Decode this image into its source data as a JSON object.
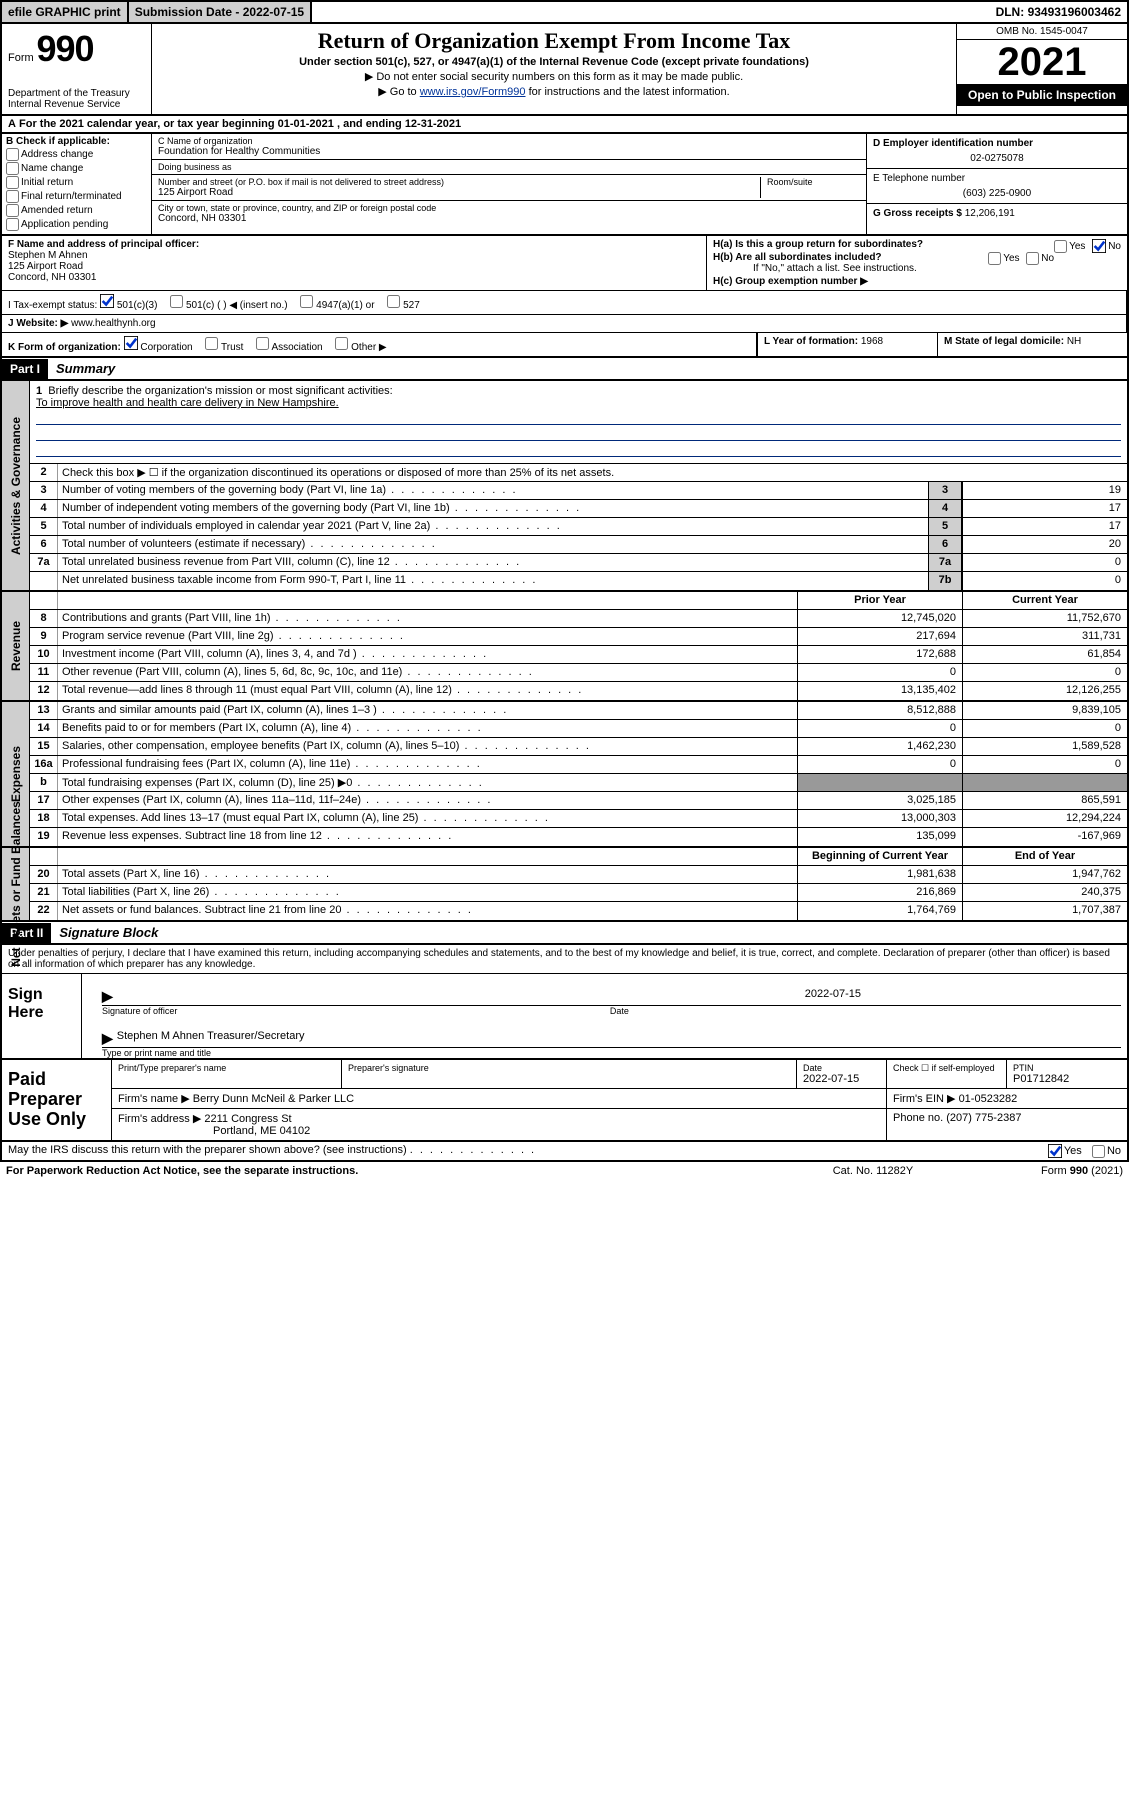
{
  "topbar": {
    "efile": "efile GRAPHIC print",
    "submission_label": "Submission Date - ",
    "submission_date": "2022-07-15",
    "dln_label": "DLN: ",
    "dln": "93493196003462"
  },
  "header": {
    "form_prefix": "Form",
    "form_number": "990",
    "dept": "Department of the Treasury",
    "irs": "Internal Revenue Service",
    "title": "Return of Organization Exempt From Income Tax",
    "subtitle": "Under section 501(c), 527, or 4947(a)(1) of the Internal Revenue Code (except private foundations)",
    "note1": "▶ Do not enter social security numbers on this form as it may be made public.",
    "note2_pre": "▶ Go to ",
    "note2_link": "www.irs.gov/Form990",
    "note2_post": " for instructions and the latest information.",
    "omb": "OMB No. 1545-0047",
    "year": "2021",
    "inspection": "Open to Public Inspection"
  },
  "period": {
    "a_label": "A",
    "text_pre": " For the 2021 calendar year, or tax year beginning ",
    "begin": "01-01-2021",
    "text_mid": " , and ending ",
    "end": "12-31-2021"
  },
  "boxB": {
    "label": "B Check if applicable:",
    "opts": [
      "Address change",
      "Name change",
      "Initial return",
      "Final return/terminated",
      "Amended return",
      "Application pending"
    ]
  },
  "boxC": {
    "name_label": "C Name of organization",
    "name": "Foundation for Healthy Communities",
    "dba_label": "Doing business as",
    "dba": "",
    "street_label": "Number and street (or P.O. box if mail is not delivered to street address)",
    "suite_label": "Room/suite",
    "street": "125 Airport Road",
    "city_label": "City or town, state or province, country, and ZIP or foreign postal code",
    "city": "Concord, NH  03301"
  },
  "boxD": {
    "label": "D Employer identification number",
    "value": "02-0275078"
  },
  "boxE": {
    "label": "E Telephone number",
    "value": "(603) 225-0900"
  },
  "boxG": {
    "label": "G Gross receipts $ ",
    "value": "12,206,191"
  },
  "boxF": {
    "label": "F  Name and address of principal officer:",
    "name": "Stephen M Ahnen",
    "street": "125 Airport Road",
    "city": "Concord, NH  03301"
  },
  "boxH": {
    "a_label": "H(a)  Is this a group return for subordinates?",
    "a_yes": "Yes",
    "a_no": "No",
    "b_label": "H(b)  Are all subordinates included?",
    "b_note": "If \"No,\" attach a list. See instructions.",
    "c_label": "H(c)  Group exemption number ▶"
  },
  "boxI": {
    "label": "I     Tax-exempt status:",
    "opt1": "501(c)(3)",
    "opt2": "501(c) (   ) ◀ (insert no.)",
    "opt3": "4947(a)(1) or",
    "opt4": "527"
  },
  "boxJ": {
    "label": "J    Website: ▶ ",
    "value": "www.healthynh.org"
  },
  "boxK": {
    "label": "K Form of organization:",
    "opts": [
      "Corporation",
      "Trust",
      "Association",
      "Other ▶"
    ]
  },
  "boxL": {
    "label": "L Year of formation: ",
    "value": "1968"
  },
  "boxM": {
    "label": "M State of legal domicile: ",
    "value": "NH"
  },
  "partI": {
    "hdr": "Part I",
    "title": "Summary",
    "line1_label": "Briefly describe the organization's mission or most significant activities:",
    "line1_text": "To improve health and health care delivery in New Hampshire.",
    "line2": "Check this box ▶ ☐  if the organization discontinued its operations or disposed of more than 25% of its net assets.",
    "vtab_gov": "Activities & Governance",
    "vtab_rev": "Revenue",
    "vtab_exp": "Expenses",
    "vtab_net": "Net Assets or Fund Balances",
    "col_prior": "Prior Year",
    "col_curr": "Current Year",
    "col_beg": "Beginning of Current Year",
    "col_end": "End of Year",
    "rows_gov": [
      {
        "n": "3",
        "desc": "Number of voting members of the governing body (Part VI, line 1a)",
        "box": "3",
        "val": "19"
      },
      {
        "n": "4",
        "desc": "Number of independent voting members of the governing body (Part VI, line 1b)",
        "box": "4",
        "val": "17"
      },
      {
        "n": "5",
        "desc": "Total number of individuals employed in calendar year 2021 (Part V, line 2a)",
        "box": "5",
        "val": "17"
      },
      {
        "n": "6",
        "desc": "Total number of volunteers (estimate if necessary)",
        "box": "6",
        "val": "20"
      },
      {
        "n": "7a",
        "desc": "Total unrelated business revenue from Part VIII, column (C), line 12",
        "box": "7a",
        "val": "0"
      },
      {
        "n": "",
        "desc": "Net unrelated business taxable income from Form 990-T, Part I, line 11",
        "box": "7b",
        "val": "0"
      }
    ],
    "rows_rev": [
      {
        "n": "8",
        "desc": "Contributions and grants (Part VIII, line 1h)",
        "p": "12,745,020",
        "c": "11,752,670"
      },
      {
        "n": "9",
        "desc": "Program service revenue (Part VIII, line 2g)",
        "p": "217,694",
        "c": "311,731"
      },
      {
        "n": "10",
        "desc": "Investment income (Part VIII, column (A), lines 3, 4, and 7d )",
        "p": "172,688",
        "c": "61,854"
      },
      {
        "n": "11",
        "desc": "Other revenue (Part VIII, column (A), lines 5, 6d, 8c, 9c, 10c, and 11e)",
        "p": "0",
        "c": "0"
      },
      {
        "n": "12",
        "desc": "Total revenue—add lines 8 through 11 (must equal Part VIII, column (A), line 12)",
        "p": "13,135,402",
        "c": "12,126,255"
      }
    ],
    "rows_exp": [
      {
        "n": "13",
        "desc": "Grants and similar amounts paid (Part IX, column (A), lines 1–3 )",
        "p": "8,512,888",
        "c": "9,839,105"
      },
      {
        "n": "14",
        "desc": "Benefits paid to or for members (Part IX, column (A), line 4)",
        "p": "0",
        "c": "0"
      },
      {
        "n": "15",
        "desc": "Salaries, other compensation, employee benefits (Part IX, column (A), lines 5–10)",
        "p": "1,462,230",
        "c": "1,589,528"
      },
      {
        "n": "16a",
        "desc": "Professional fundraising fees (Part IX, column (A), line 11e)",
        "p": "0",
        "c": "0"
      },
      {
        "n": "b",
        "desc": "Total fundraising expenses (Part IX, column (D), line 25) ▶0",
        "p": "",
        "c": "",
        "shade": true
      },
      {
        "n": "17",
        "desc": "Other expenses (Part IX, column (A), lines 11a–11d, 11f–24e)",
        "p": "3,025,185",
        "c": "865,591"
      },
      {
        "n": "18",
        "desc": "Total expenses. Add lines 13–17 (must equal Part IX, column (A), line 25)",
        "p": "13,000,303",
        "c": "12,294,224"
      },
      {
        "n": "19",
        "desc": "Revenue less expenses. Subtract line 18 from line 12",
        "p": "135,099",
        "c": "-167,969"
      }
    ],
    "rows_net": [
      {
        "n": "20",
        "desc": "Total assets (Part X, line 16)",
        "p": "1,981,638",
        "c": "1,947,762"
      },
      {
        "n": "21",
        "desc": "Total liabilities (Part X, line 26)",
        "p": "216,869",
        "c": "240,375"
      },
      {
        "n": "22",
        "desc": "Net assets or fund balances. Subtract line 21 from line 20",
        "p": "1,764,769",
        "c": "1,707,387"
      }
    ]
  },
  "partII": {
    "hdr": "Part II",
    "title": "Signature Block",
    "decl": "Under penalties of perjury, I declare that I have examined this return, including accompanying schedules and statements, and to the best of my knowledge and belief, it is true, correct, and complete. Declaration of preparer (other than officer) is based on all information of which preparer has any knowledge.",
    "sign_here": "Sign Here",
    "sig_of_officer": "Signature of officer",
    "date_label": "Date",
    "sig_date": "2022-07-15",
    "officer_name": "Stephen M Ahnen  Treasurer/Secretary",
    "type_name": "Type or print name and title"
  },
  "prep": {
    "label": "Paid Preparer Use Only",
    "col_name": "Print/Type preparer's name",
    "col_sig": "Preparer's signature",
    "col_date": "Date",
    "date": "2022-07-15",
    "check_label": "Check ☐ if self-employed",
    "ptin_label": "PTIN",
    "ptin": "P01712842",
    "firm_name_label": "Firm's name     ▶ ",
    "firm_name": "Berry Dunn McNeil & Parker LLC",
    "firm_ein_label": "Firm's EIN ▶ ",
    "firm_ein": "01-0523282",
    "firm_addr_label": "Firm's address ▶ ",
    "firm_addr1": "2211 Congress St",
    "firm_addr2": "Portland, ME  04102",
    "phone_label": "Phone no. ",
    "phone": "(207) 775-2387"
  },
  "foot": {
    "may": "May the IRS discuss this return with the preparer shown above? (see instructions)",
    "yes": "Yes",
    "no": "No",
    "pra": "For Paperwork Reduction Act Notice, see the separate instructions.",
    "cat": "Cat. No. 11282Y",
    "form": "Form 990 (2021)"
  }
}
